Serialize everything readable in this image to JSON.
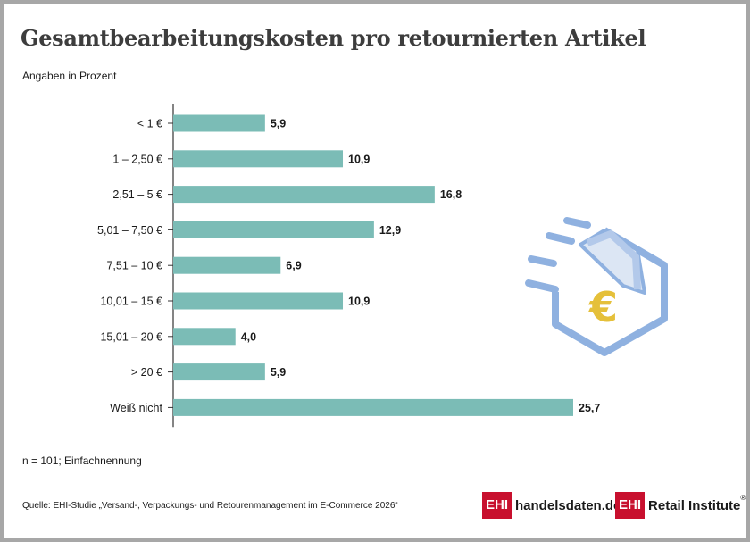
{
  "header": {
    "title": "Gesamtbearbeitungskosten pro retournierten Artikel",
    "subtitle": "Angaben in Prozent"
  },
  "footer": {
    "note": "n = 101; Einfachnennung",
    "source": "Quelle: EHI-Studie „Versand-, Verpackungs- und Retourenmanagement im E-Commerce 2026“"
  },
  "logos": {
    "handelsdaten": {
      "box": "EHI",
      "text": "handelsdaten.de"
    },
    "retail_institute": {
      "box": "EHI",
      "text": "Retail Institute",
      "mark": "®"
    }
  },
  "illustration": {
    "icon": "flying-parcel-euro-icon",
    "symbol": "€",
    "colors": {
      "outline": "#8fb1e0",
      "euro": "#e5c03a"
    }
  },
  "colors": {
    "bar": "#7bbcb6",
    "axis": "#333333",
    "text": "#1a1a1a"
  },
  "chart_data": {
    "type": "bar",
    "orientation": "horizontal",
    "categories": [
      "< 1 €",
      "1 – 2,50 €",
      "2,51 – 5 €",
      "5,01 – 7,50 €",
      "7,51 – 10 €",
      "10,01 – 15 €",
      "15,01 – 20 €",
      "> 20 €",
      "Weiß nicht"
    ],
    "values": [
      5.9,
      10.9,
      16.8,
      12.9,
      6.9,
      10.9,
      4.0,
      5.9,
      25.7
    ],
    "value_labels": [
      "5,9",
      "10,9",
      "16,8",
      "12,9",
      "6,9",
      "10,9",
      "4,0",
      "5,9",
      "25,7"
    ],
    "title": "Gesamtbearbeitungskosten pro retournierten Artikel",
    "subtitle": "Angaben in Prozent",
    "unit": "%",
    "xlim": [
      0,
      25.7
    ],
    "grid": false,
    "legend": "none"
  }
}
